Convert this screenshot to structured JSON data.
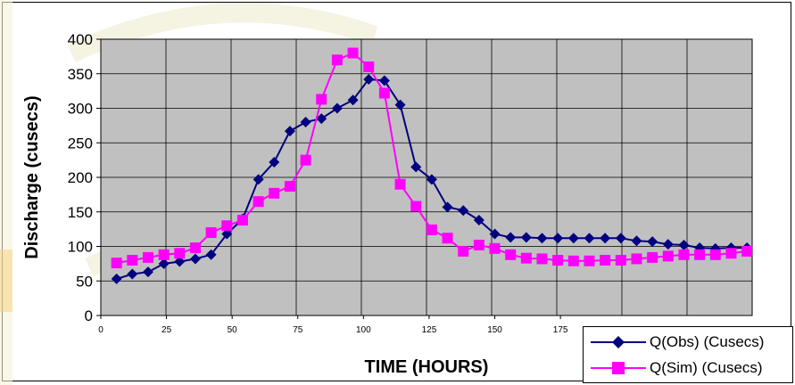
{
  "chart_data": {
    "type": "line",
    "title": "",
    "xlabel": "TIME (HOURS)",
    "ylabel": "Discharge (cusecs)",
    "xlim": [
      0,
      248
    ],
    "ylim": [
      0,
      400
    ],
    "x_ticks": [
      0,
      25,
      50,
      75,
      100,
      125,
      150,
      175
    ],
    "x_tick_labels": [
      "0",
      "25",
      "50",
      "75",
      "100",
      "125",
      "150",
      "175"
    ],
    "y_ticks": [
      0,
      50,
      100,
      150,
      200,
      250,
      300,
      350,
      400
    ],
    "grid": true,
    "plot_background": "#c0c0c0",
    "legend_position": "bottom-right",
    "x": [
      6,
      12,
      18,
      24,
      30,
      36,
      42,
      48,
      54,
      60,
      66,
      72,
      78,
      84,
      90,
      96,
      102,
      108,
      114,
      120,
      126,
      132,
      138,
      144,
      150,
      156,
      162,
      168,
      174,
      180,
      186,
      192,
      198,
      204,
      210,
      216,
      222,
      228,
      234,
      240,
      246
    ],
    "series": [
      {
        "name": "Q(Obs) (Cusecs)",
        "color": "#000080",
        "marker": "diamond",
        "values": [
          53,
          60,
          63,
          75,
          78,
          82,
          88,
          118,
          140,
          197,
          222,
          267,
          280,
          285,
          300,
          312,
          342,
          340,
          305,
          215,
          197,
          157,
          152,
          138,
          118,
          113,
          113,
          112,
          112,
          112,
          112,
          112,
          112,
          108,
          107,
          103,
          102,
          98,
          97,
          98,
          98
        ]
      },
      {
        "name": "Q(Sim) (Cusecs)",
        "color": "#ff00ff",
        "marker": "square",
        "values": [
          76,
          80,
          84,
          88,
          90,
          98,
          120,
          130,
          138,
          165,
          177,
          187,
          225,
          313,
          370,
          380,
          360,
          322,
          190,
          158,
          124,
          112,
          93,
          102,
          97,
          88,
          83,
          82,
          80,
          79,
          79,
          80,
          80,
          82,
          84,
          86,
          88,
          88,
          88,
          90,
          93
        ]
      }
    ]
  },
  "legend": {
    "items": [
      {
        "label": "Q(Obs) (Cusecs)",
        "color": "#000080",
        "marker": "diamond"
      },
      {
        "label": "Q(Sim) (Cusecs)",
        "color": "#ff00ff",
        "marker": "square"
      }
    ]
  }
}
